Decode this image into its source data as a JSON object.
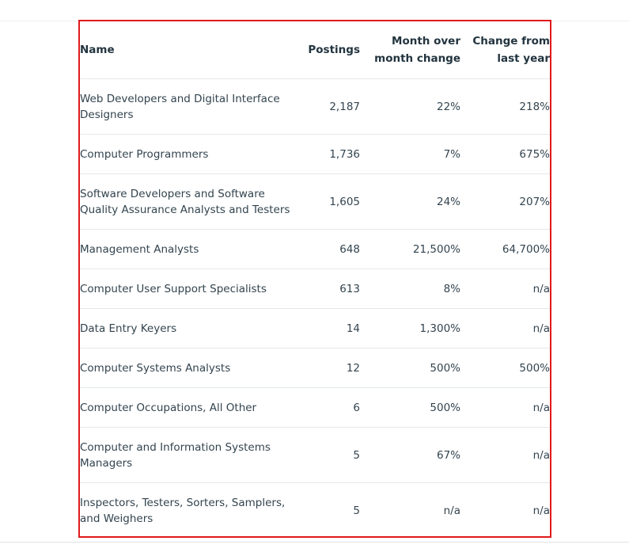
{
  "table": {
    "headers": {
      "name": "Name",
      "postings": "Postings",
      "mom_line1": "Month over",
      "mom_line2": "month change",
      "yoy_line1": "Change from",
      "yoy_line2": "last year"
    },
    "rows": [
      {
        "name": "Web Developers and Digital Interface Designers",
        "postings": "2,187",
        "mom": "22%",
        "yoy": "218%"
      },
      {
        "name": "Computer Programmers",
        "postings": "1,736",
        "mom": "7%",
        "yoy": "675%"
      },
      {
        "name": "Software Developers and Software Quality Assurance Analysts and Testers",
        "postings": "1,605",
        "mom": "24%",
        "yoy": "207%"
      },
      {
        "name": "Management Analysts",
        "postings": "648",
        "mom": "21,500%",
        "yoy": "64,700%"
      },
      {
        "name": "Computer User Support Specialists",
        "postings": "613",
        "mom": "8%",
        "yoy": "n/a"
      },
      {
        "name": "Data Entry Keyers",
        "postings": "14",
        "mom": "1,300%",
        "yoy": "n/a"
      },
      {
        "name": "Computer Systems Analysts",
        "postings": "12",
        "mom": "500%",
        "yoy": "500%"
      },
      {
        "name": "Computer Occupations, All Other",
        "postings": "6",
        "mom": "500%",
        "yoy": "n/a"
      },
      {
        "name": "Computer and Information Systems Managers",
        "postings": "5",
        "mom": "67%",
        "yoy": "n/a"
      },
      {
        "name": "Inspectors, Testers, Sorters, Samplers, and Weighers",
        "postings": "5",
        "mom": "n/a",
        "yoy": "n/a"
      }
    ]
  },
  "colors": {
    "highlight_border": "#e0191b",
    "text": "#33444f",
    "row_divider": "#e4e7ea"
  }
}
